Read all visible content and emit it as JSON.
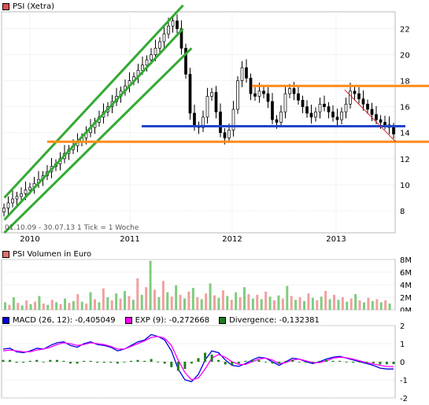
{
  "price_panel": {
    "legend_label": "PSI (Xetra)",
    "legend_color": "#e05050",
    "info_text": "01.10.09 - 30.07.13   1 Tick = 1 Woche"
  },
  "volume_panel": {
    "legend_label": "PSI Volumen in Euro",
    "legend_color": "#e07070"
  },
  "macd_panel": {
    "macd_label": "MACD (26, 12): -0,405049",
    "macd_color": "#0000dd",
    "exp_label": "EXP (9): -0,272668",
    "exp_color": "#ff00ff",
    "div_label": "Divergence: -0,132381",
    "div_color": "#1e7d1e"
  },
  "chart_data": [
    {
      "type": "candlestick",
      "title": "PSI (Xetra)",
      "x_labels": [
        "2010",
        "2011",
        "2012",
        "2013"
      ],
      "y_ticks": [
        8,
        10,
        12,
        14,
        16,
        18,
        20,
        22
      ],
      "ylim": [
        6.3,
        23.3
      ],
      "grid": true,
      "weekly_closes": [
        8.2,
        8.6,
        8.9,
        9.1,
        9.3,
        9.6,
        9.8,
        10.1,
        10.4,
        10.7,
        11.0,
        11.4,
        11.6,
        12.0,
        12.4,
        12.7,
        13.0,
        13.3,
        13.6,
        14.0,
        14.4,
        14.8,
        15.2,
        15.6,
        16.0,
        16.4,
        16.8,
        17.2,
        17.6,
        18.0,
        18.3,
        18.8,
        19.2,
        19.6,
        20.0,
        20.5,
        21.0,
        21.6,
        22.2,
        22.6,
        22.0,
        20.5,
        18.5,
        15.5,
        14.5,
        14.4,
        15.2,
        16.8,
        17.1,
        15.6,
        14.0,
        13.6,
        14.2,
        15.8,
        18.0,
        19.0,
        18.2,
        17.0,
        16.8,
        17.2,
        17.0,
        16.4,
        15.0,
        14.8,
        15.6,
        17.0,
        17.4,
        17.0,
        16.5,
        16.0,
        15.5,
        15.2,
        15.6,
        16.2,
        16.0,
        15.6,
        15.2,
        15.0,
        15.6,
        16.2,
        17.2,
        17.0,
        16.6,
        16.2,
        15.8,
        15.4,
        15.0,
        14.8,
        14.6,
        14.4,
        13.9
      ],
      "trendlines": [
        {
          "kind": "channel",
          "color": "#33aa33",
          "points": [
            [
              "2009-10",
              7.3
            ],
            [
              "2011-07",
              22.0
            ]
          ]
        },
        {
          "kind": "channel",
          "color": "#33aa33",
          "points": [
            [
              "2009-10",
              9.0
            ],
            [
              "2011-07",
              23.8
            ]
          ]
        },
        {
          "kind": "channel",
          "color": "#33aa33",
          "points": [
            [
              "2009-10",
              6.3
            ],
            [
              "2011-08",
              20.5
            ]
          ]
        },
        {
          "kind": "resistance",
          "color": "#ff8c1a",
          "value": 17.6
        },
        {
          "kind": "support",
          "color": "#2244cc",
          "value": 14.5
        },
        {
          "kind": "support",
          "color": "#ff8c1a",
          "value": 13.3
        },
        {
          "kind": "trend",
          "color": "#cc2222",
          "points": [
            [
              "2013-02",
              17.3
            ],
            [
              "2013-08",
              13.3
            ]
          ]
        }
      ]
    },
    {
      "type": "bar",
      "title": "PSI Volumen in Euro",
      "y_ticks": [
        "0M",
        "2M",
        "4M",
        "6M",
        "8M"
      ],
      "ylim": [
        0,
        8
      ],
      "values_m": [
        1.2,
        0.8,
        2.0,
        1.1,
        0.7,
        1.5,
        0.9,
        1.3,
        2.2,
        1.0,
        0.8,
        1.6,
        1.2,
        0.9,
        1.8,
        1.1,
        1.4,
        2.5,
        1.3,
        1.0,
        2.8,
        1.7,
        1.2,
        3.4,
        2.0,
        1.5,
        2.6,
        1.8,
        3.0,
        2.2,
        1.6,
        5.0,
        2.4,
        3.6,
        7.8,
        3.2,
        2.0,
        4.6,
        2.8,
        2.1,
        3.9,
        2.4,
        1.8,
        2.9,
        3.5,
        2.0,
        1.7,
        2.6,
        4.2,
        2.3,
        1.9,
        3.1,
        2.2,
        1.6,
        2.8,
        2.0,
        3.6,
        2.5,
        1.8,
        2.4,
        1.7,
        2.9,
        2.1,
        1.5,
        2.3,
        1.8,
        3.8,
        2.2,
        1.6,
        2.0,
        1.4,
        2.6,
        1.9,
        1.5,
        2.1,
        3.0,
        1.7,
        2.4,
        1.6,
        2.0,
        1.3,
        1.8,
        2.5,
        1.5,
        1.2,
        1.9,
        1.4,
        1.7,
        1.2,
        1.5,
        1.0
      ]
    },
    {
      "type": "line",
      "title": "MACD (26, 12)",
      "y_ticks": [
        -2,
        -1,
        0,
        1,
        2
      ],
      "ylim": [
        -2,
        2
      ],
      "series": [
        {
          "name": "MACD (26, 12)",
          "color": "#0000dd",
          "values": [
            0.7,
            0.75,
            0.55,
            0.5,
            0.6,
            0.75,
            0.7,
            0.9,
            1.05,
            1.1,
            0.9,
            0.8,
            1.0,
            1.1,
            0.95,
            0.9,
            0.8,
            0.6,
            0.7,
            0.9,
            1.1,
            1.2,
            1.5,
            1.4,
            1.2,
            0.6,
            -0.4,
            -1.0,
            -1.1,
            -0.7,
            0.1,
            0.6,
            0.5,
            0.1,
            -0.2,
            -0.25,
            -0.1,
            0.1,
            0.25,
            0.2,
            0.0,
            -0.2,
            0.0,
            0.2,
            0.15,
            0.0,
            -0.1,
            0.0,
            0.15,
            0.25,
            0.3,
            0.2,
            0.1,
            0.0,
            -0.1,
            -0.2,
            -0.35,
            -0.4,
            -0.4
          ]
        },
        {
          "name": "EXP (9)",
          "color": "#ff00ff",
          "values": [
            0.6,
            0.65,
            0.6,
            0.55,
            0.55,
            0.65,
            0.7,
            0.8,
            0.95,
            1.05,
            1.0,
            0.9,
            0.95,
            1.05,
            1.0,
            0.95,
            0.85,
            0.7,
            0.7,
            0.85,
            1.0,
            1.15,
            1.35,
            1.4,
            1.3,
            0.9,
            0.1,
            -0.6,
            -1.0,
            -0.9,
            -0.4,
            0.2,
            0.4,
            0.25,
            0.0,
            -0.15,
            -0.15,
            0.0,
            0.15,
            0.2,
            0.1,
            -0.1,
            -0.05,
            0.1,
            0.15,
            0.05,
            -0.05,
            -0.05,
            0.05,
            0.2,
            0.25,
            0.22,
            0.15,
            0.05,
            -0.05,
            -0.12,
            -0.2,
            -0.26,
            -0.27
          ]
        },
        {
          "name": "Divergence",
          "color": "#1e7d1e",
          "kind": "bar",
          "values": [
            0.1,
            0.1,
            -0.05,
            -0.05,
            0.05,
            0.1,
            0.0,
            0.1,
            0.1,
            0.05,
            -0.1,
            -0.1,
            0.05,
            0.05,
            -0.05,
            -0.05,
            -0.05,
            -0.1,
            0.0,
            0.05,
            0.1,
            0.05,
            0.15,
            0.0,
            -0.1,
            -0.3,
            -0.5,
            -0.4,
            -0.1,
            0.2,
            0.5,
            0.4,
            0.1,
            -0.15,
            -0.2,
            -0.1,
            0.05,
            0.1,
            0.1,
            0.0,
            -0.1,
            -0.1,
            0.05,
            0.1,
            0.0,
            -0.05,
            -0.05,
            0.05,
            0.1,
            0.05,
            0.05,
            -0.02,
            -0.05,
            -0.05,
            -0.05,
            -0.08,
            -0.15,
            -0.14,
            -0.13
          ]
        }
      ]
    }
  ]
}
